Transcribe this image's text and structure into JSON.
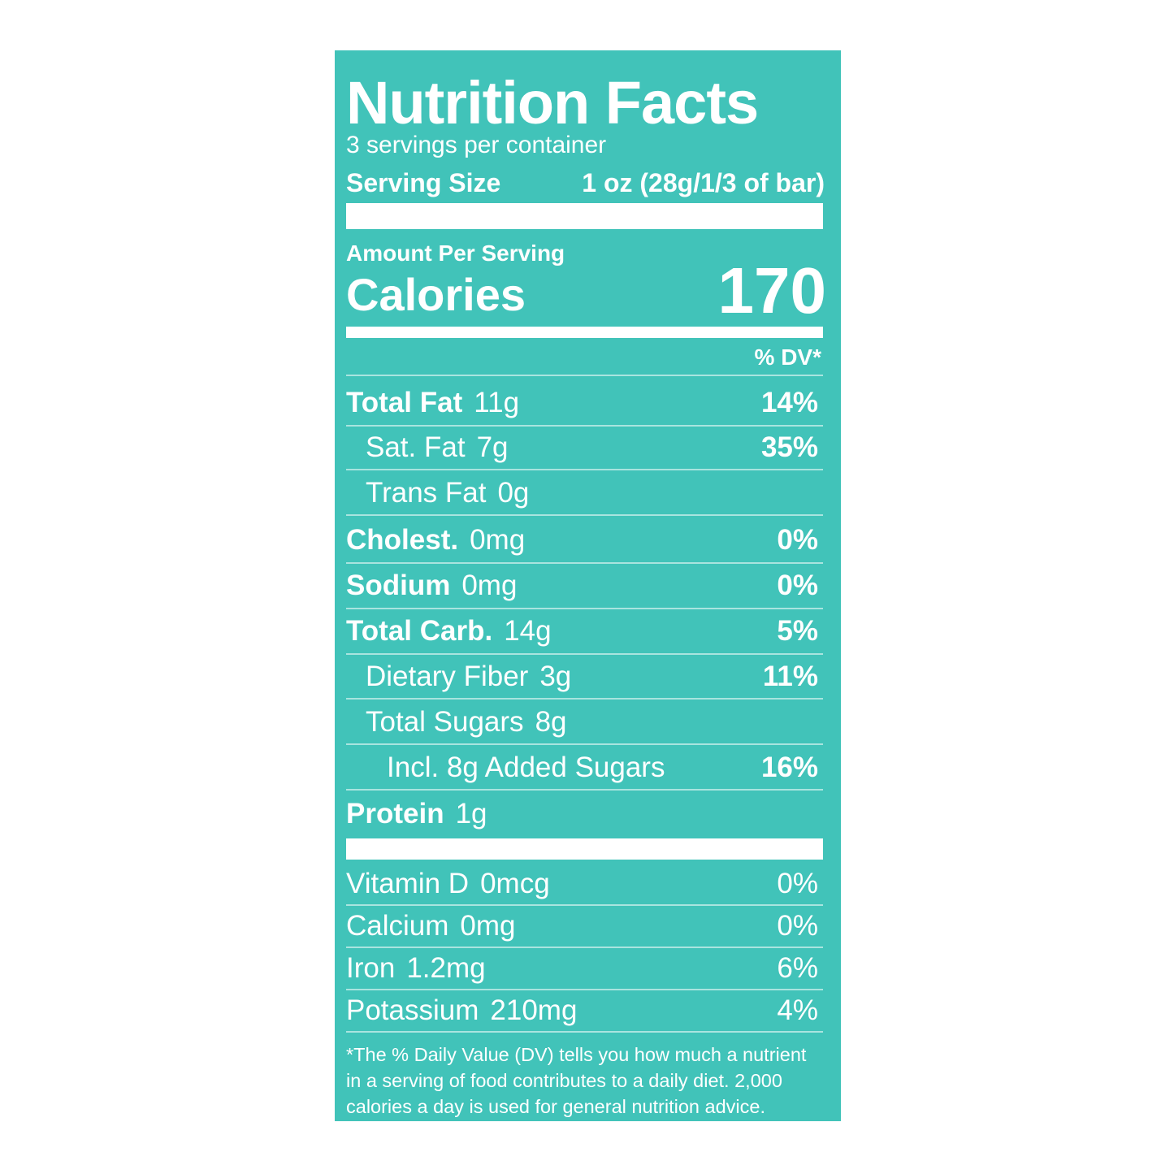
{
  "title": "Nutrition Facts",
  "servings": "3 servings per container",
  "serving_size": {
    "label": "Serving Size",
    "value": "1 oz (28g/1/3 of bar)"
  },
  "amount_per_serving": "Amount Per Serving",
  "calories": {
    "label": "Calories",
    "value": "170"
  },
  "dv_header": "% DV*",
  "nutrients": [
    {
      "name": "Total Fat",
      "amount": "11g",
      "dv": "14%"
    },
    {
      "name": "Sat. Fat",
      "amount": "7g",
      "dv": "35%"
    },
    {
      "name": "Trans Fat",
      "amount": "0g"
    },
    {
      "name": "Cholest.",
      "amount": "0mg",
      "dv": "0%"
    },
    {
      "name": "Sodium",
      "amount": "0mg",
      "dv": "0%"
    },
    {
      "name": "Total Carb.",
      "amount": "14g",
      "dv": "5%"
    },
    {
      "name": "Dietary Fiber",
      "amount": "3g",
      "dv": "11%"
    },
    {
      "name": "Total Sugars",
      "amount": "8g"
    },
    {
      "name": "Incl. 8g Added Sugars",
      "dv": "16%"
    },
    {
      "name": "Protein",
      "amount": "1g"
    }
  ],
  "vitamins": [
    {
      "name": "Vitamin D",
      "amount": "0mcg",
      "dv": "0%"
    },
    {
      "name": "Calcium",
      "amount": "0mg",
      "dv": "0%"
    },
    {
      "name": "Iron",
      "amount": "1.2mg",
      "dv": "6%"
    },
    {
      "name": "Potassium",
      "amount": "210mg",
      "dv": "4%"
    }
  ],
  "footnote": "*The % Daily Value (DV) tells you how much a nutrient in a serving of food contributes to a daily diet. 2,000 calories a day is used for general nutrition advice."
}
